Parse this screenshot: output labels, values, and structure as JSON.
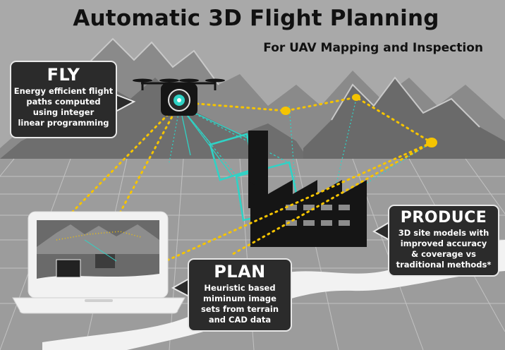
{
  "title": "Automatic 3D Flight Planning",
  "subtitle": "For UAV Mapping and Inspection",
  "callouts": {
    "fly": {
      "heading": "FLY",
      "body": "Energy efficient flight\npaths computed\nusing integer\nlinear programming"
    },
    "plan": {
      "heading": "PLAN",
      "body": "Heuristic based\nmiminum image\nsets from terrain\nand CAD data"
    },
    "produce": {
      "heading": "PRODUCE",
      "body": "3D site models with\nimproved accuracy\n& coverage vs\ntraditional methods*"
    }
  },
  "colors": {
    "background": "#a9a9a9",
    "mountains": "#7a7a7a",
    "sky_peaks": "#bdbdbd",
    "waypoint": "#f5c400",
    "camera_frustum": "#2fd3c6",
    "callout_bg": "#2b2b2b",
    "factory": "#151515",
    "road": "#f2f2f2"
  },
  "icons": {
    "drone": "drone-icon",
    "factory": "factory-icon",
    "laptop": "laptop-icon"
  }
}
